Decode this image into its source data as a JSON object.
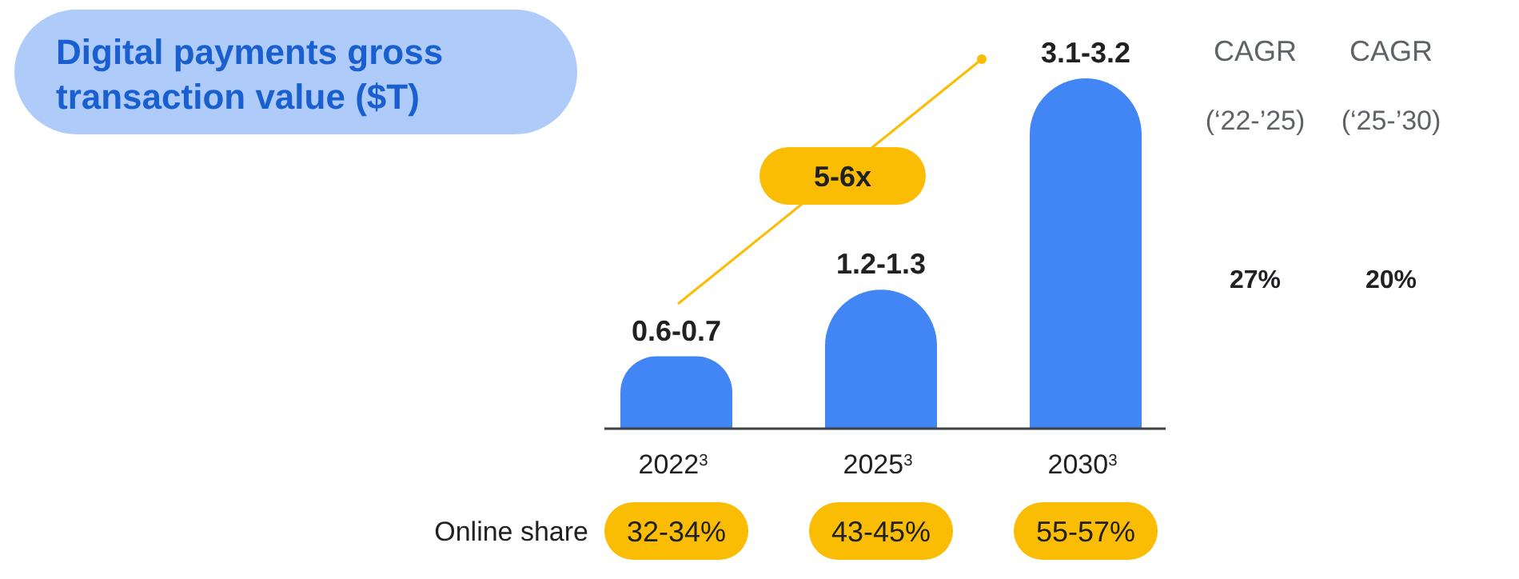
{
  "chart_data": {
    "type": "bar",
    "title": "Digital payments gross transaction value ($T)",
    "categories": [
      "2022$^{3}$",
      "2025$^{3}$",
      "2030$^{3}$"
    ],
    "values": [
      0.65,
      1.25,
      3.15
    ],
    "color": "#4285f4",
    "value_labels": [
      "0.6-0.7",
      "1.2-1.3",
      "3.1-3.2"
    ],
    "annotations": [
      "5-6x",
      "CAGR",
      "(‘22-’25)",
      "CAGR",
      "(‘25-’30)",
      "27%",
      "20%",
      "Online share",
      "32-34%",
      "43-45%",
      "55-57%"
    ],
    "data_labels": false
  }
}
